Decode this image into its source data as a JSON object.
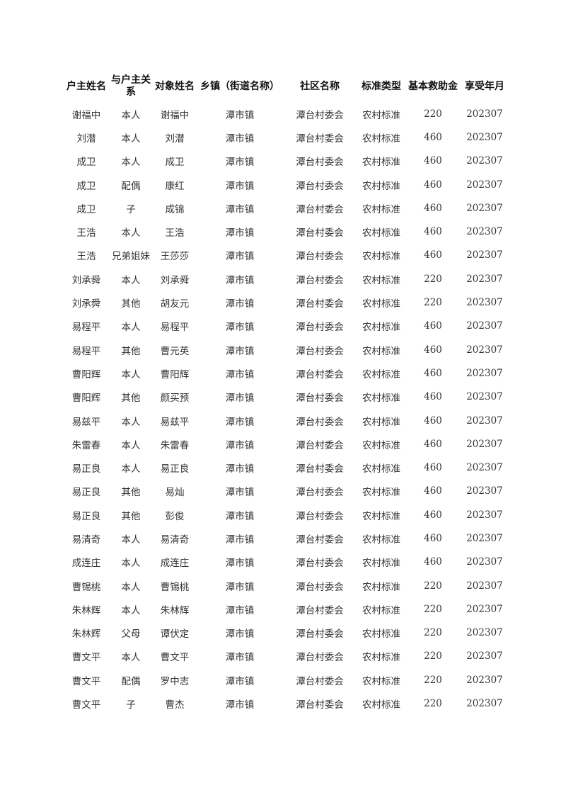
{
  "table": {
    "headers": [
      "户主姓名",
      "与户主关系",
      "对象姓名",
      "乡镇（街道名称）",
      "社区名称",
      "标准类型",
      "基本救助金",
      "享受年月"
    ],
    "rows": [
      [
        "谢福中",
        "本人",
        "谢福中",
        "潭市镇",
        "潭台村委会",
        "农村标准",
        "220",
        "202307"
      ],
      [
        "刘潜",
        "本人",
        "刘潜",
        "潭市镇",
        "潭台村委会",
        "农村标准",
        "460",
        "202307"
      ],
      [
        "成卫",
        "本人",
        "成卫",
        "潭市镇",
        "潭台村委会",
        "农村标准",
        "460",
        "202307"
      ],
      [
        "成卫",
        "配偶",
        "康红",
        "潭市镇",
        "潭台村委会",
        "农村标准",
        "460",
        "202307"
      ],
      [
        "成卫",
        "子",
        "成锦",
        "潭市镇",
        "潭台村委会",
        "农村标准",
        "460",
        "202307"
      ],
      [
        "王浩",
        "本人",
        "王浩",
        "潭市镇",
        "潭台村委会",
        "农村标准",
        "460",
        "202307"
      ],
      [
        "王浩",
        "兄弟姐妹",
        "王莎莎",
        "潭市镇",
        "潭台村委会",
        "农村标准",
        "460",
        "202307"
      ],
      [
        "刘承舜",
        "本人",
        "刘承舜",
        "潭市镇",
        "潭台村委会",
        "农村标准",
        "220",
        "202307"
      ],
      [
        "刘承舜",
        "其他",
        "胡友元",
        "潭市镇",
        "潭台村委会",
        "农村标准",
        "220",
        "202307"
      ],
      [
        "易程平",
        "本人",
        "易程平",
        "潭市镇",
        "潭台村委会",
        "农村标准",
        "460",
        "202307"
      ],
      [
        "易程平",
        "其他",
        "曹元英",
        "潭市镇",
        "潭台村委会",
        "农村标准",
        "460",
        "202307"
      ],
      [
        "曹阳辉",
        "本人",
        "曹阳辉",
        "潭市镇",
        "潭台村委会",
        "农村标准",
        "460",
        "202307"
      ],
      [
        "曹阳辉",
        "其他",
        "颜买预",
        "潭市镇",
        "潭台村委会",
        "农村标准",
        "460",
        "202307"
      ],
      [
        "易兹平",
        "本人",
        "易兹平",
        "潭市镇",
        "潭台村委会",
        "农村标准",
        "460",
        "202307"
      ],
      [
        "朱雷春",
        "本人",
        "朱雷春",
        "潭市镇",
        "潭台村委会",
        "农村标准",
        "460",
        "202307"
      ],
      [
        "易正良",
        "本人",
        "易正良",
        "潭市镇",
        "潭台村委会",
        "农村标准",
        "460",
        "202307"
      ],
      [
        "易正良",
        "其他",
        "易灿",
        "潭市镇",
        "潭台村委会",
        "农村标准",
        "460",
        "202307"
      ],
      [
        "易正良",
        "其他",
        "彭俊",
        "潭市镇",
        "潭台村委会",
        "农村标准",
        "460",
        "202307"
      ],
      [
        "易清奇",
        "本人",
        "易清奇",
        "潭市镇",
        "潭台村委会",
        "农村标准",
        "460",
        "202307"
      ],
      [
        "成连庄",
        "本人",
        "成连庄",
        "潭市镇",
        "潭台村委会",
        "农村标准",
        "460",
        "202307"
      ],
      [
        "曹锡桃",
        "本人",
        "曹锡桃",
        "潭市镇",
        "潭台村委会",
        "农村标准",
        "220",
        "202307"
      ],
      [
        "朱林辉",
        "本人",
        "朱林辉",
        "潭市镇",
        "潭台村委会",
        "农村标准",
        "220",
        "202307"
      ],
      [
        "朱林辉",
        "父母",
        "谭伏定",
        "潭市镇",
        "潭台村委会",
        "农村标准",
        "220",
        "202307"
      ],
      [
        "曹文平",
        "本人",
        "曹文平",
        "潭市镇",
        "潭台村委会",
        "农村标准",
        "220",
        "202307"
      ],
      [
        "曹文平",
        "配偶",
        "罗中志",
        "潭市镇",
        "潭台村委会",
        "农村标准",
        "220",
        "202307"
      ],
      [
        "曹文平",
        "子",
        "曹杰",
        "潭市镇",
        "潭台村委会",
        "农村标准",
        "220",
        "202307"
      ]
    ]
  }
}
